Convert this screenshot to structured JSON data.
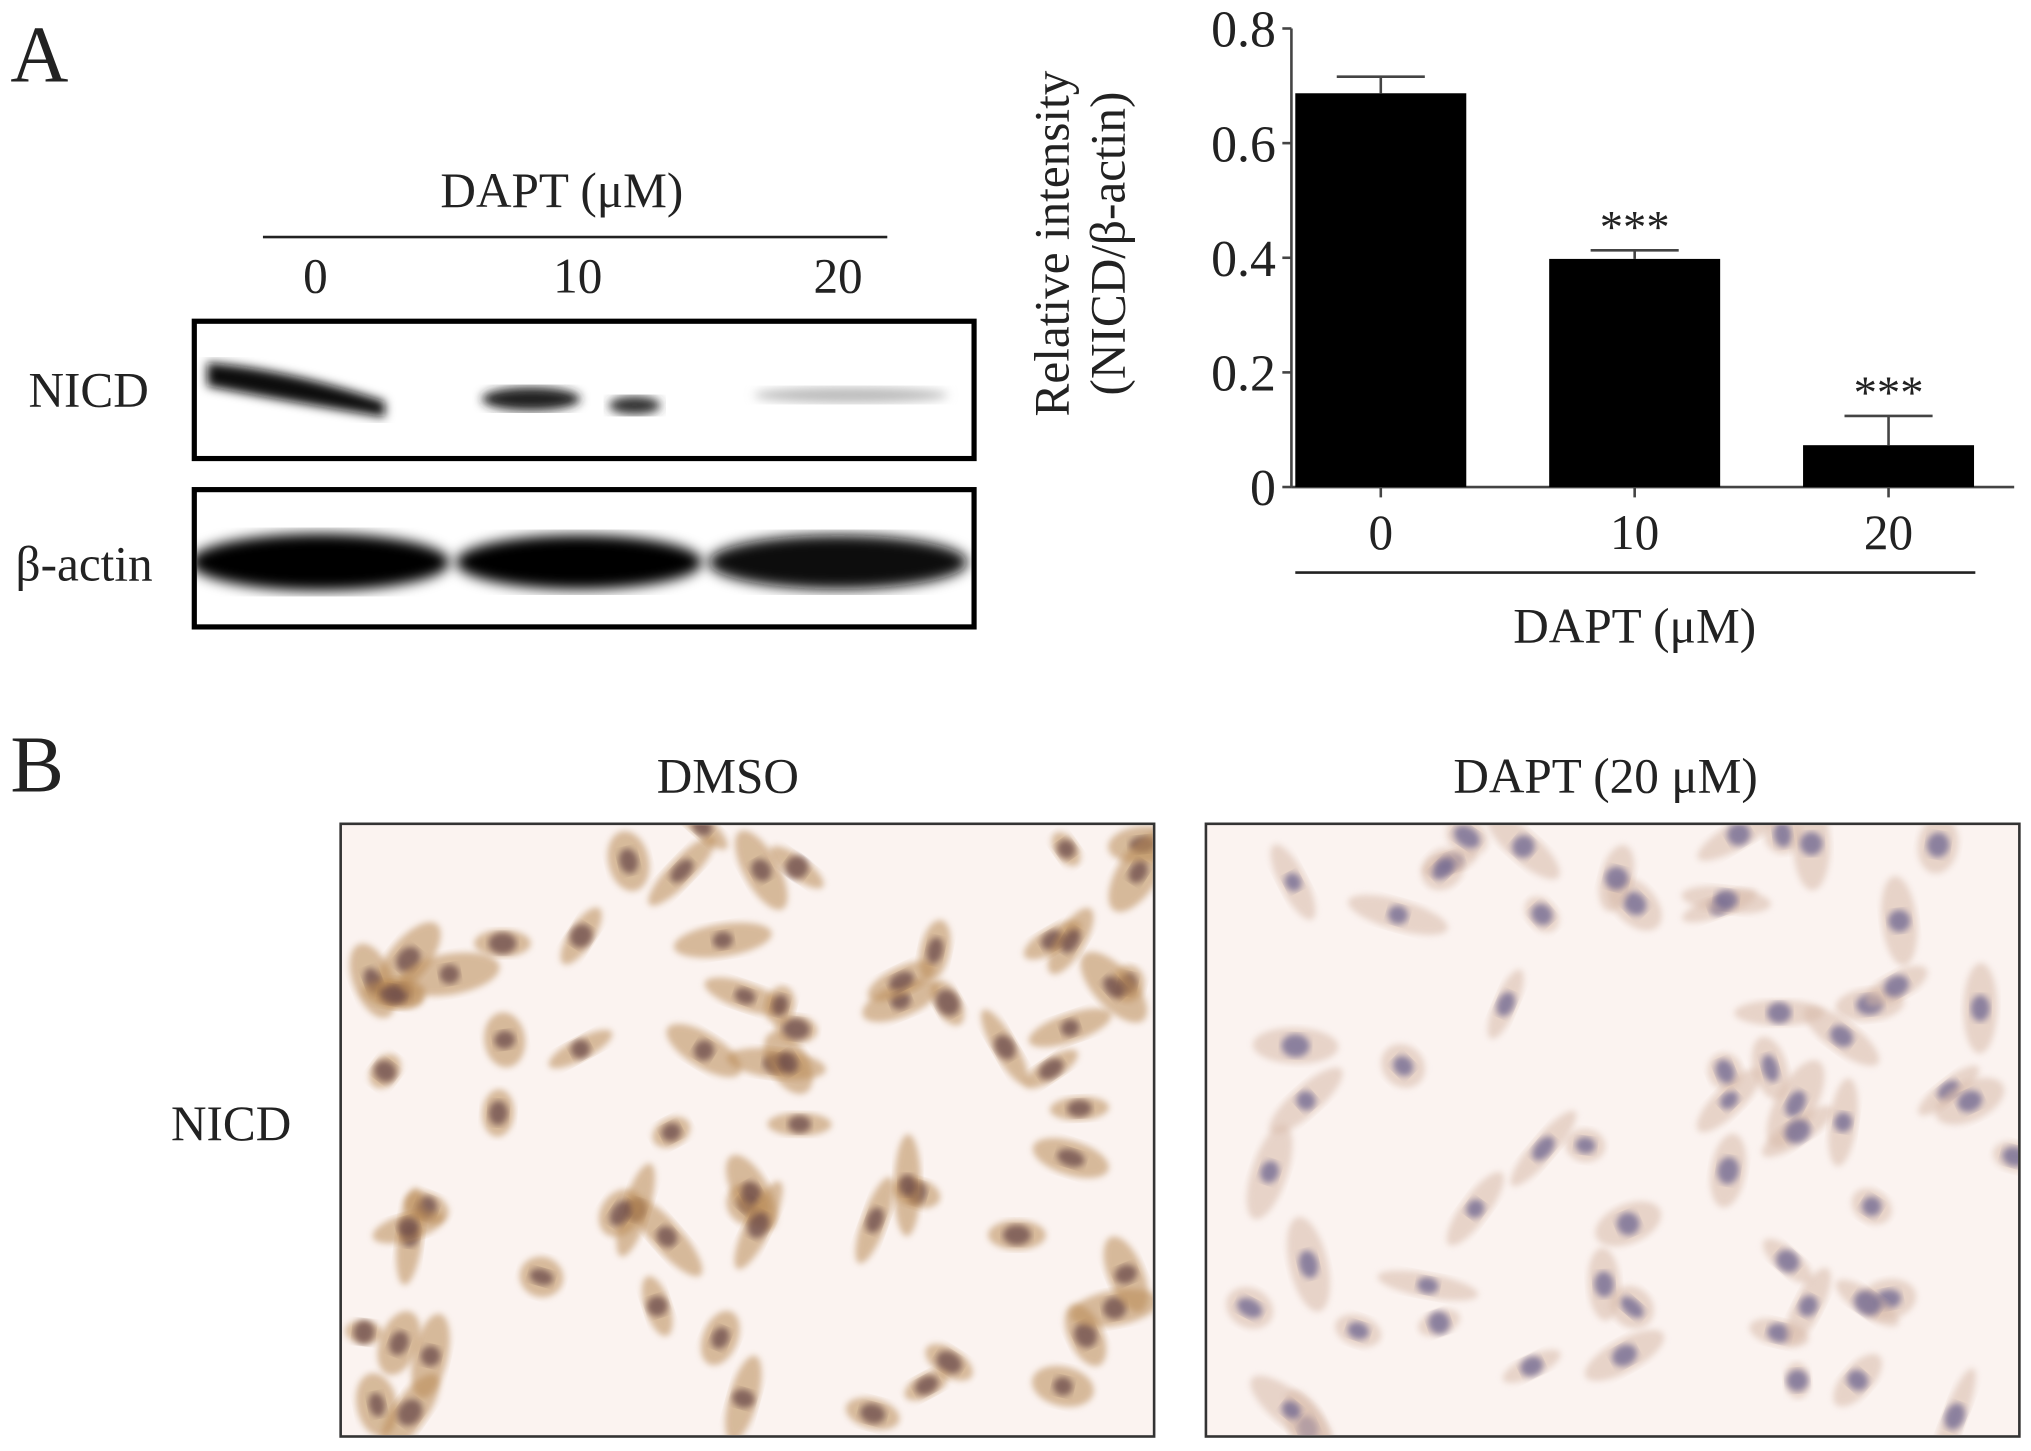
{
  "panel_a": {
    "letter": "A",
    "blot": {
      "treatment_label": "DAPT (μM)",
      "lanes": [
        "0",
        "10",
        "20"
      ],
      "rows": [
        "NICD",
        "β-actin"
      ]
    }
  },
  "panel_b": {
    "letter": "B",
    "row_label": "NICD",
    "columns": [
      "DMSO",
      "DAPT (20 μM)"
    ]
  },
  "chart_data": {
    "type": "bar",
    "categories": [
      "0",
      "10",
      "20"
    ],
    "values": [
      0.687,
      0.398,
      0.073
    ],
    "errors": [
      0.029,
      0.015,
      0.051
    ],
    "significance": [
      "",
      "***",
      "***"
    ],
    "ylabel_line1": "Relative intensity",
    "ylabel_line2": "(NICD/β-actin)",
    "xlabel": "DAPT (μM)",
    "ylim": [
      0,
      0.8
    ],
    "yticks": [
      "0",
      "0.2",
      "0.4",
      "0.6",
      "0.8"
    ],
    "grid": false,
    "bar_color": "#000000"
  }
}
